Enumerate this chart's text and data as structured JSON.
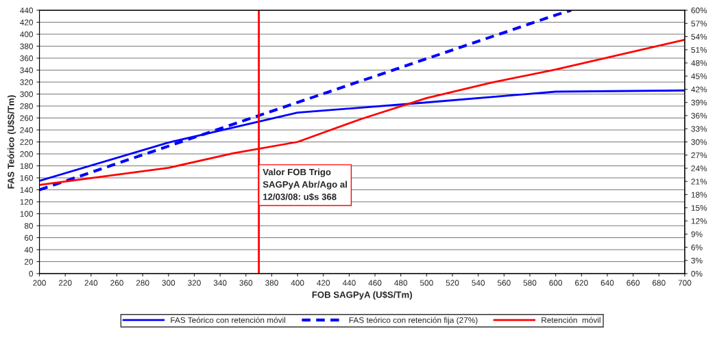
{
  "chart_data": {
    "type": "line",
    "xlabel": "FOB SAGPyA (U$S/Tm)",
    "ylabel": "FAS Teórico (U$S/Tm)",
    "xlim": [
      200,
      700
    ],
    "xticks": [
      200,
      220,
      240,
      260,
      280,
      300,
      320,
      340,
      360,
      380,
      400,
      420,
      440,
      460,
      480,
      500,
      520,
      540,
      560,
      580,
      600,
      620,
      640,
      660,
      680,
      700
    ],
    "ylim": [
      0,
      440
    ],
    "yticks": [
      0,
      20,
      40,
      60,
      80,
      100,
      120,
      140,
      160,
      180,
      200,
      220,
      240,
      260,
      280,
      300,
      320,
      340,
      360,
      380,
      400,
      420,
      440
    ],
    "y2lim": [
      0,
      60
    ],
    "y2ticks": [
      {
        "value": 0,
        "label": "0%"
      },
      {
        "value": 3,
        "label": "3%"
      },
      {
        "value": 6,
        "label": "6%"
      },
      {
        "value": 9,
        "label": "9%"
      },
      {
        "value": 12,
        "label": "12%"
      },
      {
        "value": 15,
        "label": "15%"
      },
      {
        "value": 18,
        "label": "18%"
      },
      {
        "value": 21,
        "label": "21%"
      },
      {
        "value": 24,
        "label": "24%"
      },
      {
        "value": 27,
        "label": "27%"
      },
      {
        "value": 30,
        "label": "30%"
      },
      {
        "value": 33,
        "label": "33%"
      },
      {
        "value": 36,
        "label": "36%"
      },
      {
        "value": 39,
        "label": "39%"
      },
      {
        "value": 42,
        "label": "42%"
      },
      {
        "value": 45,
        "label": "45%"
      },
      {
        "value": 48,
        "label": "48%"
      },
      {
        "value": 51,
        "label": "51%"
      },
      {
        "value": 54,
        "label": "54%"
      },
      {
        "value": 57,
        "label": "57%"
      },
      {
        "value": 60,
        "label": "60%"
      }
    ],
    "grid": "y",
    "legend": "bottom",
    "series": [
      {
        "name": "FAS Teórico con retención móvil",
        "color": "#0000ff",
        "line_style": "solid",
        "x": [
          200,
          300,
          400,
          500,
          600,
          700
        ],
        "values": [
          155,
          219,
          269,
          286,
          304,
          306
        ]
      },
      {
        "name": "FAS teórico con retención fija (27%)",
        "color": "#0000ff",
        "line_style": "dashed",
        "x": [
          200,
          300,
          400,
          500,
          600,
          612
        ],
        "values": [
          140,
          213,
          286,
          359,
          432,
          440
        ]
      },
      {
        "name": "Retención  móvil",
        "color": "#ff0000",
        "line_style": "solid",
        "axis": "y2",
        "x": [
          200,
          300,
          350,
          400,
          450,
          500,
          550,
          600,
          700
        ],
        "values": [
          20.2,
          24.1,
          27.4,
          30,
          35.3,
          40,
          43.5,
          46.5,
          53.3
        ]
      }
    ],
    "ref_lines": [
      {
        "axis": "x",
        "value": 370,
        "color": "#ff0000",
        "label": "Valor FOB Trigo\nSAGPyA Abr/Ago al\n12/03/08: u$s 368"
      }
    ]
  }
}
